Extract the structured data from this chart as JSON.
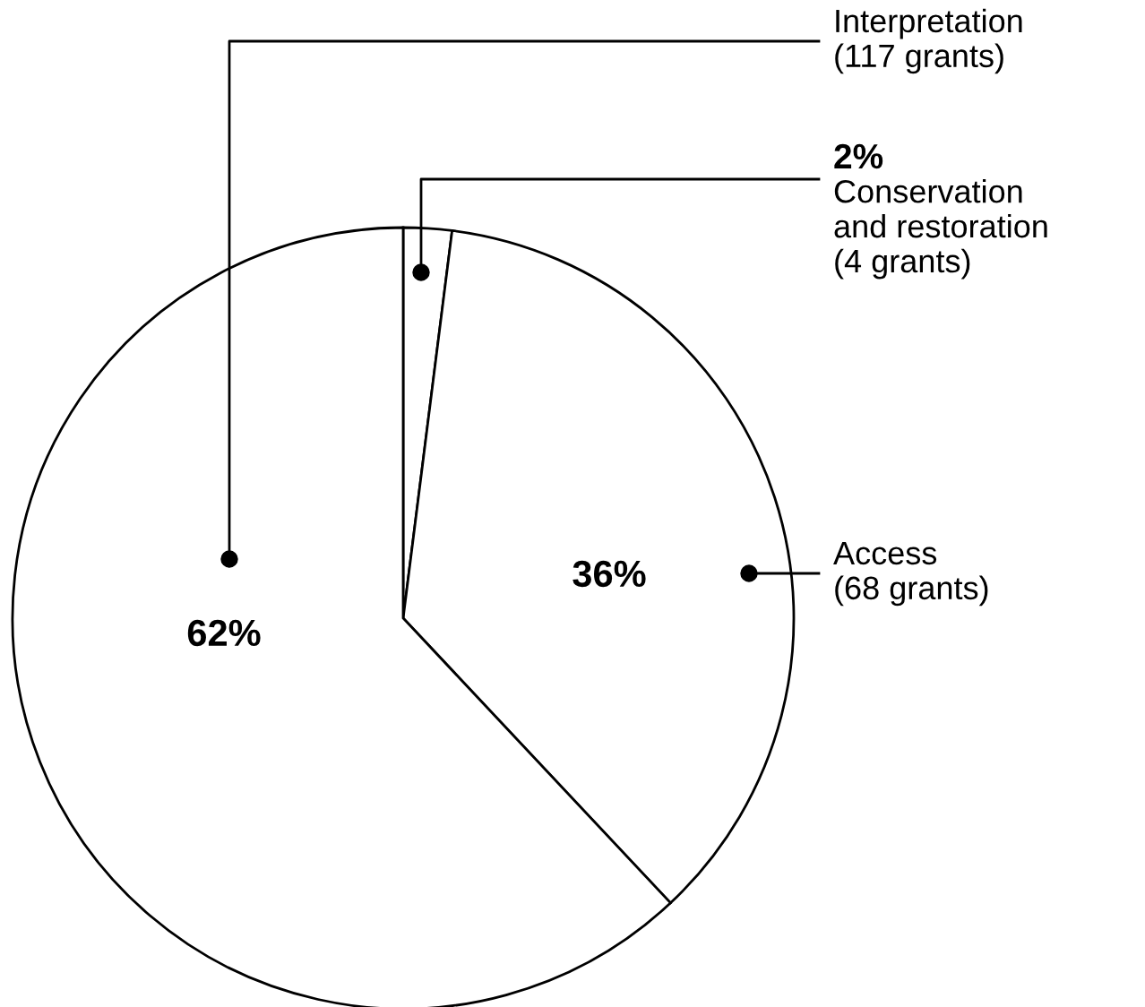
{
  "chart_data": {
    "type": "pie",
    "categories": [
      "Conservation\nand restoration\n(4 grants)",
      "Access\n(68 grants)",
      "Interpretation\n(117 grants)"
    ],
    "values": [
      2,
      36,
      62
    ],
    "colors": [
      "#ffffff",
      "#ffffff",
      "#ffffff"
    ],
    "value_labels": [
      "2%",
      "36%",
      "62%"
    ]
  }
}
